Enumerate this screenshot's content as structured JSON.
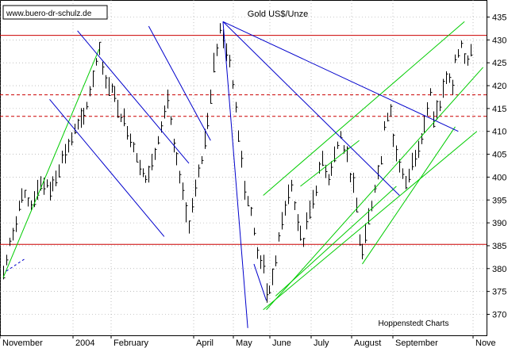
{
  "chart_data": {
    "type": "ohlc",
    "title": "Gold US$/Unze",
    "watermark": "www.buero-dr-schulz.de",
    "source": "Hoppenstedt Charts",
    "y_axis": {
      "min": 366,
      "max": 438,
      "ticks": [
        370,
        375,
        380,
        385,
        390,
        395,
        400,
        405,
        410,
        415,
        420,
        425,
        430,
        435
      ],
      "position": "right"
    },
    "x_axis": {
      "labels": [
        "November",
        "2004",
        "February",
        "April",
        "May",
        "June",
        "July",
        "August",
        "September",
        "Nove"
      ]
    },
    "grid": "dotted",
    "horizontal_levels": [
      {
        "value": 431,
        "style": "solid",
        "color": "#cc0000"
      },
      {
        "value": 418,
        "style": "dashed",
        "color": "#cc0000"
      },
      {
        "value": 413.3,
        "style": "dashed",
        "color": "#cc0000"
      },
      {
        "value": 385.3,
        "style": "solid",
        "color": "#cc0000"
      }
    ],
    "price_path": [
      [
        0,
        379
      ],
      [
        3,
        388
      ],
      [
        6,
        396
      ],
      [
        9,
        394
      ],
      [
        12,
        399
      ],
      [
        15,
        397
      ],
      [
        19,
        404
      ],
      [
        23,
        410
      ],
      [
        26,
        413
      ],
      [
        29,
        422
      ],
      [
        31,
        429
      ],
      [
        32,
        423
      ],
      [
        35,
        419
      ],
      [
        38,
        414
      ],
      [
        41,
        409
      ],
      [
        44,
        403
      ],
      [
        46,
        399
      ],
      [
        48,
        403
      ],
      [
        51,
        412
      ],
      [
        53,
        417
      ],
      [
        55,
        406
      ],
      [
        57,
        400
      ],
      [
        59,
        392
      ],
      [
        60,
        390
      ],
      [
        62,
        397
      ],
      [
        64,
        404
      ],
      [
        65,
        408
      ],
      [
        67,
        418
      ],
      [
        68,
        425
      ],
      [
        70,
        432
      ],
      [
        72,
        428
      ],
      [
        74,
        421
      ],
      [
        76,
        410
      ],
      [
        78,
        398
      ],
      [
        80,
        392
      ],
      [
        82,
        384
      ],
      [
        84,
        380
      ],
      [
        85,
        374
      ],
      [
        87,
        378
      ],
      [
        89,
        386
      ],
      [
        91,
        394
      ],
      [
        93,
        398
      ],
      [
        95,
        390
      ],
      [
        97,
        386
      ],
      [
        99,
        393
      ],
      [
        101,
        398
      ],
      [
        103,
        404
      ],
      [
        105,
        400
      ],
      [
        107,
        405
      ],
      [
        109,
        409
      ],
      [
        111,
        404
      ],
      [
        113,
        398
      ],
      [
        114,
        393
      ],
      [
        115,
        386
      ],
      [
        116,
        384
      ],
      [
        118,
        391
      ],
      [
        120,
        398
      ],
      [
        122,
        404
      ],
      [
        123,
        412
      ],
      [
        125,
        415
      ],
      [
        126,
        408
      ],
      [
        128,
        403
      ],
      [
        130,
        398
      ],
      [
        132,
        403
      ],
      [
        134,
        407
      ],
      [
        136,
        412
      ],
      [
        138,
        418
      ],
      [
        139,
        412
      ],
      [
        141,
        416
      ],
      [
        143,
        422
      ],
      [
        145,
        420
      ],
      [
        146,
        426
      ],
      [
        148,
        428
      ],
      [
        150,
        425
      ],
      [
        151,
        427
      ]
    ],
    "green_lines": [
      [
        [
          0,
          378
        ],
        [
          31,
          428
        ]
      ],
      [
        [
          84,
          396
        ],
        [
          149,
          434
        ]
      ],
      [
        [
          85,
          371
        ],
        [
          155,
          424
        ]
      ],
      [
        [
          84,
          371
        ],
        [
          153,
          410
        ]
      ],
      [
        [
          88,
          374
        ],
        [
          127,
          398
        ]
      ],
      [
        [
          116,
          381
        ],
        [
          146,
          411
        ]
      ],
      [
        [
          96,
          398
        ],
        [
          115,
          408
        ]
      ]
    ],
    "blue_lines": [
      [
        [
          24,
          432
        ],
        [
          60,
          403
        ]
      ],
      [
        [
          15,
          417
        ],
        [
          52,
          387
        ]
      ],
      [
        [
          47,
          433
        ],
        [
          67,
          408
        ]
      ],
      [
        [
          71,
          434
        ],
        [
          147,
          410
        ]
      ],
      [
        [
          71,
          434
        ],
        [
          128,
          396
        ]
      ],
      [
        [
          71,
          434
        ],
        [
          79,
          367
        ]
      ],
      [
        [
          81,
          381
        ],
        [
          85,
          373
        ]
      ]
    ]
  }
}
